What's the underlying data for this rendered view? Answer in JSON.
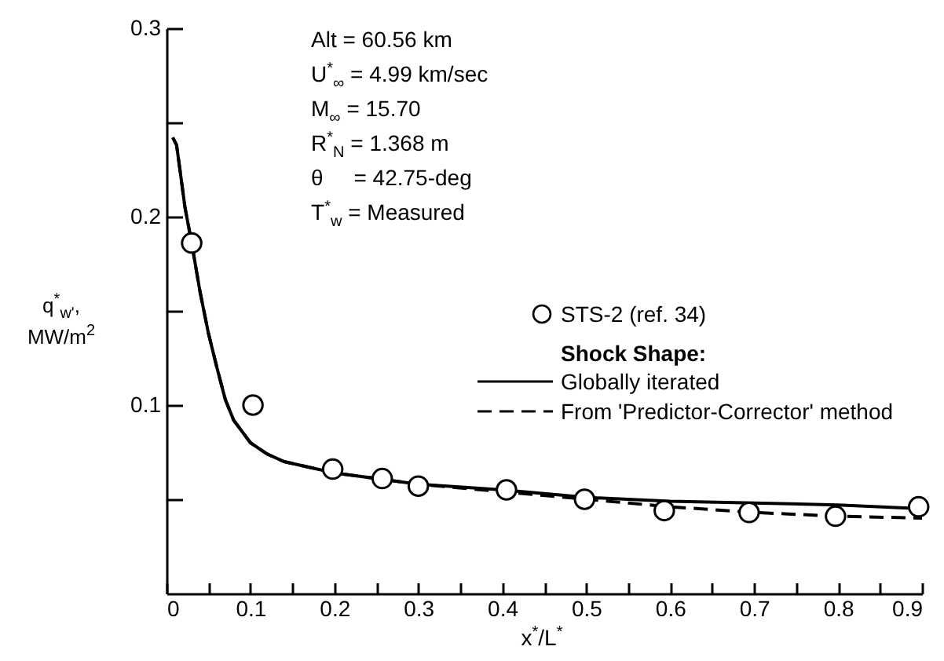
{
  "chart_data": {
    "type": "line",
    "xlabel": "x$^{*}$/L$^{*}$",
    "ylabel": "q$^{*}$$_{w'}$, MW/m$^{2}$",
    "legend_title": "Shock Shape:",
    "annotations": [
      "Alt = 60.56 km",
      "U$^{*}$$_{∞}$ = 4.99 km/sec",
      "M$_{∞}$ = 15.70",
      "R$^{*}$$_{N}$ = 1.368 m",
      "θ     = 42.75-deg",
      "T$^{*}$$_{w}$ = Measured"
    ],
    "xlim": [
      0,
      0.9
    ],
    "xticks": [
      0,
      {
        "value": 0.05,
        "label": null
      },
      0.1,
      {
        "value": 0.15,
        "label": null
      },
      0.2,
      {
        "value": 0.25,
        "label": null
      },
      0.3,
      {
        "value": 0.35,
        "label": null
      },
      0.4,
      {
        "value": 0.45,
        "label": null
      },
      0.5,
      {
        "value": 0.55,
        "label": null
      },
      0.6,
      {
        "value": 0.65,
        "label": null
      },
      0.7,
      {
        "value": 0.75,
        "label": null
      },
      0.8,
      {
        "value": 0.85,
        "label": null
      },
      0.9
    ],
    "ylim": [
      0,
      0.3
    ],
    "yticks": [
      {
        "value": 0.05,
        "label": null
      },
      0.1,
      {
        "value": 0.15,
        "label": null
      },
      0.2,
      {
        "value": 0.25,
        "label": null
      },
      0.3
    ],
    "grid": false,
    "legend": "right",
    "series": [
      {
        "name": "STS-2 (ref. 34)",
        "type": "scatter",
        "marker": "circle",
        "color": "#000000",
        "x": [
          0.03,
          0.103,
          0.198,
          0.257,
          0.3,
          0.405,
          0.498,
          0.593,
          0.694,
          0.797,
          0.896
        ],
        "values": [
          0.186,
          0.1,
          0.066,
          0.061,
          0.057,
          0.055,
          0.05,
          0.044,
          0.043,
          0.041,
          0.046
        ]
      },
      {
        "name": "Globally iterated",
        "type": "line",
        "line_style": "solid",
        "color": "#000000",
        "x": [
          0.0075,
          0.012,
          0.016,
          0.022,
          0.03,
          0.04,
          0.05,
          0.06,
          0.07,
          0.08,
          0.1,
          0.12,
          0.14,
          0.17,
          0.2,
          0.25,
          0.3,
          0.4,
          0.5,
          0.6,
          0.7,
          0.8,
          0.9
        ],
        "values": [
          0.242,
          0.238,
          0.225,
          0.205,
          0.186,
          0.16,
          0.138,
          0.12,
          0.103,
          0.092,
          0.08,
          0.074,
          0.07,
          0.067,
          0.064,
          0.061,
          0.058,
          0.055,
          0.051,
          0.049,
          0.048,
          0.047,
          0.045
        ]
      },
      {
        "name": "From 'Predictor-Corrector' method",
        "type": "line",
        "line_style": "dashed",
        "color": "#000000",
        "x": [
          0.0075,
          0.012,
          0.016,
          0.022,
          0.03,
          0.04,
          0.05,
          0.06,
          0.07,
          0.08,
          0.1,
          0.12,
          0.14,
          0.17,
          0.2,
          0.25,
          0.3,
          0.4,
          0.5,
          0.6,
          0.7,
          0.8,
          0.9
        ],
        "values": [
          0.242,
          0.238,
          0.225,
          0.205,
          0.186,
          0.16,
          0.138,
          0.12,
          0.103,
          0.092,
          0.08,
          0.074,
          0.07,
          0.067,
          0.064,
          0.061,
          0.058,
          0.054,
          0.05,
          0.046,
          0.043,
          0.041,
          0.04
        ]
      }
    ]
  }
}
